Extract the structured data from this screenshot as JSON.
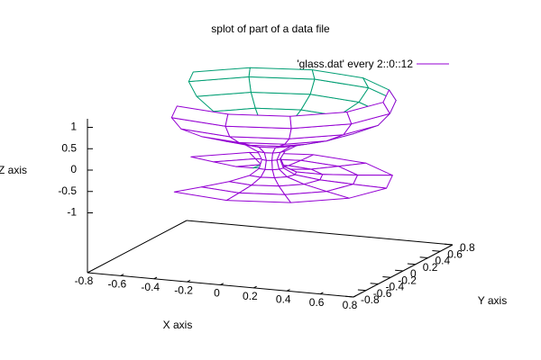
{
  "chart_data": {
    "type": "surface",
    "title": "splot of part of a data file",
    "xlabel": "X axis",
    "ylabel": "Y axis",
    "zlabel": "Z axis",
    "legend": "'glass.dat' every 2::0::12",
    "top_color": "#9400d3",
    "bottom_color": "#009e73",
    "xlim": [
      -0.8,
      0.8
    ],
    "ylim": [
      -0.8,
      0.8
    ],
    "zlim": [
      -1.2,
      1.2
    ],
    "ticslevel": 0.5,
    "xticks": [
      -0.8,
      -0.6,
      -0.4,
      -0.2,
      0,
      0.2,
      0.4,
      0.6,
      0.8
    ],
    "yticks": [
      -0.8,
      -0.6,
      -0.4,
      -0.2,
      0,
      0.2,
      0.4,
      0.6,
      0.8
    ],
    "zticks": [
      -1,
      -0.5,
      0,
      0.5,
      1
    ],
    "angles": [
      -120,
      -90,
      -60,
      -30,
      0,
      30,
      60,
      90,
      120,
      150
    ],
    "profile": [
      {
        "r": 0.7,
        "z": -0.5
      },
      {
        "r": 0.5,
        "z": -0.48
      },
      {
        "r": 0.3,
        "z": -0.45
      },
      {
        "r": 0.15,
        "z": -0.38
      },
      {
        "r": 0.08,
        "z": -0.25
      },
      {
        "r": 0.06,
        "z": -0.05
      },
      {
        "r": 0.09,
        "z": 0.15
      },
      {
        "r": 0.18,
        "z": 0.35
      },
      {
        "r": 0.32,
        "z": 0.5
      },
      {
        "r": 0.5,
        "z": 0.7
      },
      {
        "r": 0.65,
        "z": 0.95
      },
      {
        "r": 0.72,
        "z": 1.25
      },
      {
        "r": 0.68,
        "z": 1.5
      }
    ]
  }
}
